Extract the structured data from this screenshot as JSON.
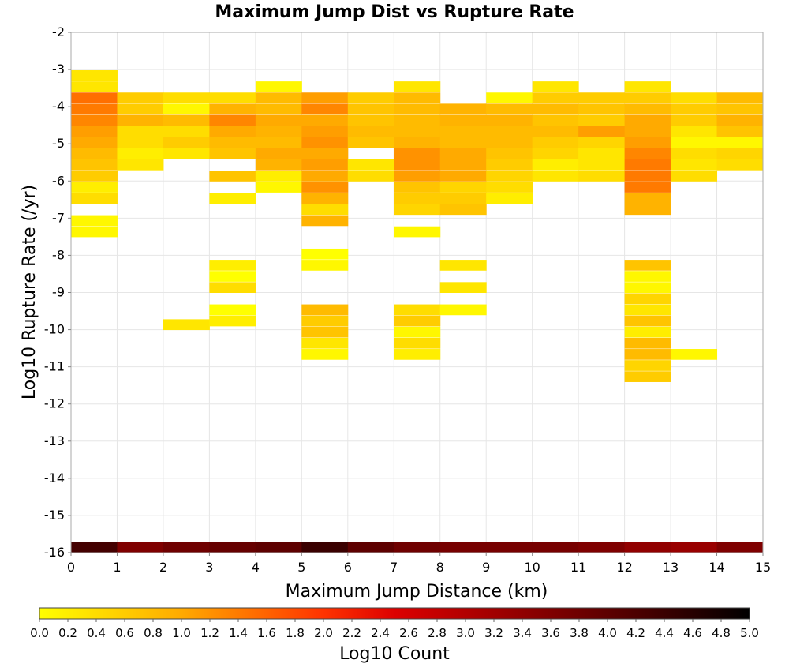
{
  "chart_data": {
    "type": "heatmap",
    "title": "Maximum Jump Dist vs Rupture Rate",
    "xlabel": "Maximum Jump Distance (km)",
    "ylabel": "Log10 Rupture Rate (/yr)",
    "xlim": [
      0,
      15
    ],
    "ylim": [
      -16,
      -2
    ],
    "x_ticks": [
      "0",
      "1",
      "2",
      "3",
      "4",
      "5",
      "6",
      "7",
      "8",
      "9",
      "10",
      "11",
      "12",
      "13",
      "14",
      "15"
    ],
    "y_ticks": [
      "-2",
      "-3",
      "-4",
      "-5",
      "-6",
      "-7",
      "-8",
      "-9",
      "-10",
      "-11",
      "-12",
      "-13",
      "-14",
      "-15",
      "-16"
    ],
    "x_bin_width": 1,
    "y_bin_height": 0.28,
    "grid": true,
    "colorscale": {
      "label": "Log10 Count",
      "min": 0.0,
      "max": 5.0,
      "ticks": [
        "0.0",
        "0.2",
        "0.4",
        "0.6",
        "0.8",
        "1.0",
        "1.2",
        "1.4",
        "1.6",
        "1.8",
        "2.0",
        "2.2",
        "2.4",
        "2.6",
        "2.8",
        "3.0",
        "3.2",
        "3.4",
        "3.6",
        "3.8",
        "4.0",
        "4.2",
        "4.4",
        "4.6",
        "4.8",
        "5.0"
      ],
      "stops": [
        {
          "value": 0.0,
          "color": "#ffff00"
        },
        {
          "value": 0.4,
          "color": "#ffdd00"
        },
        {
          "value": 1.0,
          "color": "#ffaa00"
        },
        {
          "value": 2.0,
          "color": "#ff3300"
        },
        {
          "value": 2.5,
          "color": "#dd0000"
        },
        {
          "value": 3.5,
          "color": "#880000"
        },
        {
          "value": 4.3,
          "color": "#440000"
        },
        {
          "value": 5.0,
          "color": "#000000"
        }
      ]
    },
    "cells": [
      {
        "x": 0,
        "y": -3.3,
        "v": 0.3
      },
      {
        "x": 0,
        "y": -3.6,
        "v": 0.3
      },
      {
        "x": 0,
        "y": -3.9,
        "v": 1.5
      },
      {
        "x": 0,
        "y": -4.2,
        "v": 1.4
      },
      {
        "x": 0,
        "y": -4.5,
        "v": 1.3
      },
      {
        "x": 0,
        "y": -4.8,
        "v": 1.1
      },
      {
        "x": 0,
        "y": -5.1,
        "v": 1.0
      },
      {
        "x": 0,
        "y": -5.4,
        "v": 0.8
      },
      {
        "x": 0,
        "y": -5.7,
        "v": 0.7
      },
      {
        "x": 0,
        "y": -6.0,
        "v": 0.6
      },
      {
        "x": 0,
        "y": -6.3,
        "v": 0.2
      },
      {
        "x": 0,
        "y": -6.6,
        "v": 0.4
      },
      {
        "x": 0,
        "y": -7.2,
        "v": 0.1
      },
      {
        "x": 0,
        "y": -7.5,
        "v": 0.1
      },
      {
        "x": 1,
        "y": -3.9,
        "v": 0.6
      },
      {
        "x": 1,
        "y": -4.2,
        "v": 0.6
      },
      {
        "x": 1,
        "y": -4.5,
        "v": 0.9
      },
      {
        "x": 1,
        "y": -4.8,
        "v": 0.4
      },
      {
        "x": 1,
        "y": -5.1,
        "v": 0.4
      },
      {
        "x": 1,
        "y": -5.4,
        "v": 0.2
      },
      {
        "x": 1,
        "y": -5.7,
        "v": 0.3
      },
      {
        "x": 2,
        "y": -3.9,
        "v": 0.4
      },
      {
        "x": 2,
        "y": -4.2,
        "v": 0.1
      },
      {
        "x": 2,
        "y": -4.5,
        "v": 0.8
      },
      {
        "x": 2,
        "y": -4.8,
        "v": 0.4
      },
      {
        "x": 2,
        "y": -5.1,
        "v": 0.6
      },
      {
        "x": 2,
        "y": -5.4,
        "v": 0.3
      },
      {
        "x": 2,
        "y": -10.0,
        "v": 0.3
      },
      {
        "x": 3,
        "y": -3.9,
        "v": 0.4
      },
      {
        "x": 3,
        "y": -4.2,
        "v": 0.9
      },
      {
        "x": 3,
        "y": -4.5,
        "v": 1.3
      },
      {
        "x": 3,
        "y": -4.8,
        "v": 1.0
      },
      {
        "x": 3,
        "y": -5.1,
        "v": 0.8
      },
      {
        "x": 3,
        "y": -5.4,
        "v": 0.7
      },
      {
        "x": 3,
        "y": -6.0,
        "v": 0.7
      },
      {
        "x": 3,
        "y": -6.6,
        "v": 0.2
      },
      {
        "x": 3,
        "y": -8.4,
        "v": 0.2
      },
      {
        "x": 3,
        "y": -8.7,
        "v": 0.0
      },
      {
        "x": 3,
        "y": -9.0,
        "v": 0.4
      },
      {
        "x": 3,
        "y": -9.6,
        "v": 0.0
      },
      {
        "x": 3,
        "y": -9.9,
        "v": 0.2
      },
      {
        "x": 4,
        "y": -3.6,
        "v": 0.1
      },
      {
        "x": 4,
        "y": -3.9,
        "v": 0.8
      },
      {
        "x": 4,
        "y": -4.2,
        "v": 0.8
      },
      {
        "x": 4,
        "y": -4.5,
        "v": 1.0
      },
      {
        "x": 4,
        "y": -4.8,
        "v": 0.9
      },
      {
        "x": 4,
        "y": -5.1,
        "v": 0.8
      },
      {
        "x": 4,
        "y": -5.4,
        "v": 1.0
      },
      {
        "x": 4,
        "y": -5.7,
        "v": 0.9
      },
      {
        "x": 4,
        "y": -6.0,
        "v": 0.2
      },
      {
        "x": 4,
        "y": -6.3,
        "v": 0.1
      },
      {
        "x": 5,
        "y": -3.9,
        "v": 1.1
      },
      {
        "x": 5,
        "y": -4.2,
        "v": 1.3
      },
      {
        "x": 5,
        "y": -4.5,
        "v": 1.0
      },
      {
        "x": 5,
        "y": -4.8,
        "v": 1.1
      },
      {
        "x": 5,
        "y": -5.1,
        "v": 1.2
      },
      {
        "x": 5,
        "y": -5.4,
        "v": 1.0
      },
      {
        "x": 5,
        "y": -5.7,
        "v": 1.1
      },
      {
        "x": 5,
        "y": -6.0,
        "v": 1.0
      },
      {
        "x": 5,
        "y": -6.3,
        "v": 1.2
      },
      {
        "x": 5,
        "y": -6.6,
        "v": 0.9
      },
      {
        "x": 5,
        "y": -6.9,
        "v": 0.4
      },
      {
        "x": 5,
        "y": -7.2,
        "v": 0.9
      },
      {
        "x": 5,
        "y": -8.1,
        "v": 0.0
      },
      {
        "x": 5,
        "y": -8.4,
        "v": 0.1
      },
      {
        "x": 5,
        "y": -9.6,
        "v": 0.8
      },
      {
        "x": 5,
        "y": -9.9,
        "v": 0.6
      },
      {
        "x": 5,
        "y": -10.2,
        "v": 0.7
      },
      {
        "x": 5,
        "y": -10.5,
        "v": 0.3
      },
      {
        "x": 5,
        "y": -10.8,
        "v": 0.1
      },
      {
        "x": 6,
        "y": -3.9,
        "v": 0.6
      },
      {
        "x": 6,
        "y": -4.2,
        "v": 0.7
      },
      {
        "x": 6,
        "y": -4.5,
        "v": 0.7
      },
      {
        "x": 6,
        "y": -4.8,
        "v": 0.8
      },
      {
        "x": 6,
        "y": -5.1,
        "v": 0.7
      },
      {
        "x": 6,
        "y": -5.7,
        "v": 0.3
      },
      {
        "x": 6,
        "y": -6.0,
        "v": 0.4
      },
      {
        "x": 7,
        "y": -3.6,
        "v": 0.3
      },
      {
        "x": 7,
        "y": -3.9,
        "v": 0.8
      },
      {
        "x": 7,
        "y": -4.2,
        "v": 0.8
      },
      {
        "x": 7,
        "y": -4.5,
        "v": 0.8
      },
      {
        "x": 7,
        "y": -4.8,
        "v": 0.8
      },
      {
        "x": 7,
        "y": -5.1,
        "v": 0.9
      },
      {
        "x": 7,
        "y": -5.4,
        "v": 1.2
      },
      {
        "x": 7,
        "y": -5.7,
        "v": 1.2
      },
      {
        "x": 7,
        "y": -6.0,
        "v": 1.1
      },
      {
        "x": 7,
        "y": -6.3,
        "v": 0.7
      },
      {
        "x": 7,
        "y": -6.6,
        "v": 0.6
      },
      {
        "x": 7,
        "y": -6.9,
        "v": 0.5
      },
      {
        "x": 7,
        "y": -7.5,
        "v": 0.1
      },
      {
        "x": 7,
        "y": -9.6,
        "v": 0.4
      },
      {
        "x": 7,
        "y": -9.9,
        "v": 0.6
      },
      {
        "x": 7,
        "y": -10.2,
        "v": 0.1
      },
      {
        "x": 7,
        "y": -10.5,
        "v": 0.4
      },
      {
        "x": 7,
        "y": -10.8,
        "v": 0.2
      },
      {
        "x": 8,
        "y": -4.2,
        "v": 0.9
      },
      {
        "x": 8,
        "y": -4.5,
        "v": 0.9
      },
      {
        "x": 8,
        "y": -4.8,
        "v": 0.8
      },
      {
        "x": 8,
        "y": -5.1,
        "v": 0.8
      },
      {
        "x": 8,
        "y": -5.4,
        "v": 1.0
      },
      {
        "x": 8,
        "y": -5.7,
        "v": 1.0
      },
      {
        "x": 8,
        "y": -6.0,
        "v": 1.0
      },
      {
        "x": 8,
        "y": -6.3,
        "v": 0.5
      },
      {
        "x": 8,
        "y": -6.6,
        "v": 0.6
      },
      {
        "x": 8,
        "y": -6.9,
        "v": 0.7
      },
      {
        "x": 8,
        "y": -8.4,
        "v": 0.3
      },
      {
        "x": 8,
        "y": -9.0,
        "v": 0.3
      },
      {
        "x": 8,
        "y": -9.6,
        "v": 0.1
      },
      {
        "x": 9,
        "y": -3.9,
        "v": 0.1
      },
      {
        "x": 9,
        "y": -4.2,
        "v": 0.8
      },
      {
        "x": 9,
        "y": -4.5,
        "v": 0.9
      },
      {
        "x": 9,
        "y": -4.8,
        "v": 0.8
      },
      {
        "x": 9,
        "y": -5.1,
        "v": 0.8
      },
      {
        "x": 9,
        "y": -5.4,
        "v": 0.7
      },
      {
        "x": 9,
        "y": -5.7,
        "v": 0.6
      },
      {
        "x": 9,
        "y": -6.0,
        "v": 0.5
      },
      {
        "x": 9,
        "y": -6.3,
        "v": 0.4
      },
      {
        "x": 9,
        "y": -6.6,
        "v": 0.2
      },
      {
        "x": 10,
        "y": -3.6,
        "v": 0.3
      },
      {
        "x": 10,
        "y": -3.9,
        "v": 0.6
      },
      {
        "x": 10,
        "y": -4.2,
        "v": 0.8
      },
      {
        "x": 10,
        "y": -4.5,
        "v": 0.7
      },
      {
        "x": 10,
        "y": -4.8,
        "v": 0.8
      },
      {
        "x": 10,
        "y": -5.1,
        "v": 0.6
      },
      {
        "x": 10,
        "y": -5.4,
        "v": 0.5
      },
      {
        "x": 10,
        "y": -5.7,
        "v": 0.2
      },
      {
        "x": 10,
        "y": -6.0,
        "v": 0.3
      },
      {
        "x": 11,
        "y": -3.9,
        "v": 0.6
      },
      {
        "x": 11,
        "y": -4.2,
        "v": 0.7
      },
      {
        "x": 11,
        "y": -4.5,
        "v": 0.6
      },
      {
        "x": 11,
        "y": -4.8,
        "v": 1.1
      },
      {
        "x": 11,
        "y": -5.1,
        "v": 0.5
      },
      {
        "x": 11,
        "y": -5.4,
        "v": 0.3
      },
      {
        "x": 11,
        "y": -5.7,
        "v": 0.3
      },
      {
        "x": 11,
        "y": -6.0,
        "v": 0.4
      },
      {
        "x": 12,
        "y": -3.6,
        "v": 0.3
      },
      {
        "x": 12,
        "y": -3.9,
        "v": 0.6
      },
      {
        "x": 12,
        "y": -4.2,
        "v": 0.8
      },
      {
        "x": 12,
        "y": -4.5,
        "v": 1.0
      },
      {
        "x": 12,
        "y": -4.8,
        "v": 1.0
      },
      {
        "x": 12,
        "y": -5.1,
        "v": 1.1
      },
      {
        "x": 12,
        "y": -5.4,
        "v": 1.3
      },
      {
        "x": 12,
        "y": -5.7,
        "v": 1.4
      },
      {
        "x": 12,
        "y": -6.0,
        "v": 1.4
      },
      {
        "x": 12,
        "y": -6.3,
        "v": 1.4
      },
      {
        "x": 12,
        "y": -6.6,
        "v": 0.9
      },
      {
        "x": 12,
        "y": -6.9,
        "v": 0.9
      },
      {
        "x": 12,
        "y": -8.4,
        "v": 0.7
      },
      {
        "x": 12,
        "y": -8.7,
        "v": 0.1
      },
      {
        "x": 12,
        "y": -9.0,
        "v": 0.1
      },
      {
        "x": 12,
        "y": -9.3,
        "v": 0.5
      },
      {
        "x": 12,
        "y": -9.6,
        "v": 0.3
      },
      {
        "x": 12,
        "y": -9.9,
        "v": 0.7
      },
      {
        "x": 12,
        "y": -10.2,
        "v": 0.2
      },
      {
        "x": 12,
        "y": -10.5,
        "v": 0.8
      },
      {
        "x": 12,
        "y": -10.8,
        "v": 0.8
      },
      {
        "x": 12,
        "y": -11.1,
        "v": 0.5
      },
      {
        "x": 12,
        "y": -11.4,
        "v": 0.6
      },
      {
        "x": 13,
        "y": -3.9,
        "v": 0.4
      },
      {
        "x": 13,
        "y": -4.2,
        "v": 0.6
      },
      {
        "x": 13,
        "y": -4.5,
        "v": 0.6
      },
      {
        "x": 13,
        "y": -4.8,
        "v": 0.3
      },
      {
        "x": 13,
        "y": -5.1,
        "v": 0.1
      },
      {
        "x": 13,
        "y": -5.4,
        "v": 0.4
      },
      {
        "x": 13,
        "y": -5.7,
        "v": 0.3
      },
      {
        "x": 13,
        "y": -6.0,
        "v": 0.4
      },
      {
        "x": 13,
        "y": -10.8,
        "v": 0.1
      },
      {
        "x": 14,
        "y": -3.9,
        "v": 0.8
      },
      {
        "x": 14,
        "y": -4.2,
        "v": 0.7
      },
      {
        "x": 14,
        "y": -4.5,
        "v": 0.9
      },
      {
        "x": 14,
        "y": -4.8,
        "v": 0.7
      },
      {
        "x": 14,
        "y": -5.1,
        "v": 0.1
      },
      {
        "x": 14,
        "y": -5.4,
        "v": 0.5
      },
      {
        "x": 14,
        "y": -5.7,
        "v": 0.4
      },
      {
        "x": 0,
        "y": -16.0,
        "v": 4.3
      },
      {
        "x": 1,
        "y": -16.0,
        "v": 3.6
      },
      {
        "x": 2,
        "y": -16.0,
        "v": 3.8
      },
      {
        "x": 3,
        "y": -16.0,
        "v": 3.9
      },
      {
        "x": 4,
        "y": -16.0,
        "v": 4.0
      },
      {
        "x": 5,
        "y": -16.0,
        "v": 4.4
      },
      {
        "x": 6,
        "y": -16.0,
        "v": 4.0
      },
      {
        "x": 7,
        "y": -16.0,
        "v": 3.8
      },
      {
        "x": 8,
        "y": -16.0,
        "v": 3.7
      },
      {
        "x": 9,
        "y": -16.0,
        "v": 3.7
      },
      {
        "x": 10,
        "y": -16.0,
        "v": 3.7
      },
      {
        "x": 11,
        "y": -16.0,
        "v": 3.6
      },
      {
        "x": 12,
        "y": -16.0,
        "v": 3.4
      },
      {
        "x": 13,
        "y": -16.0,
        "v": 3.3
      },
      {
        "x": 14,
        "y": -16.0,
        "v": 3.6
      }
    ]
  }
}
